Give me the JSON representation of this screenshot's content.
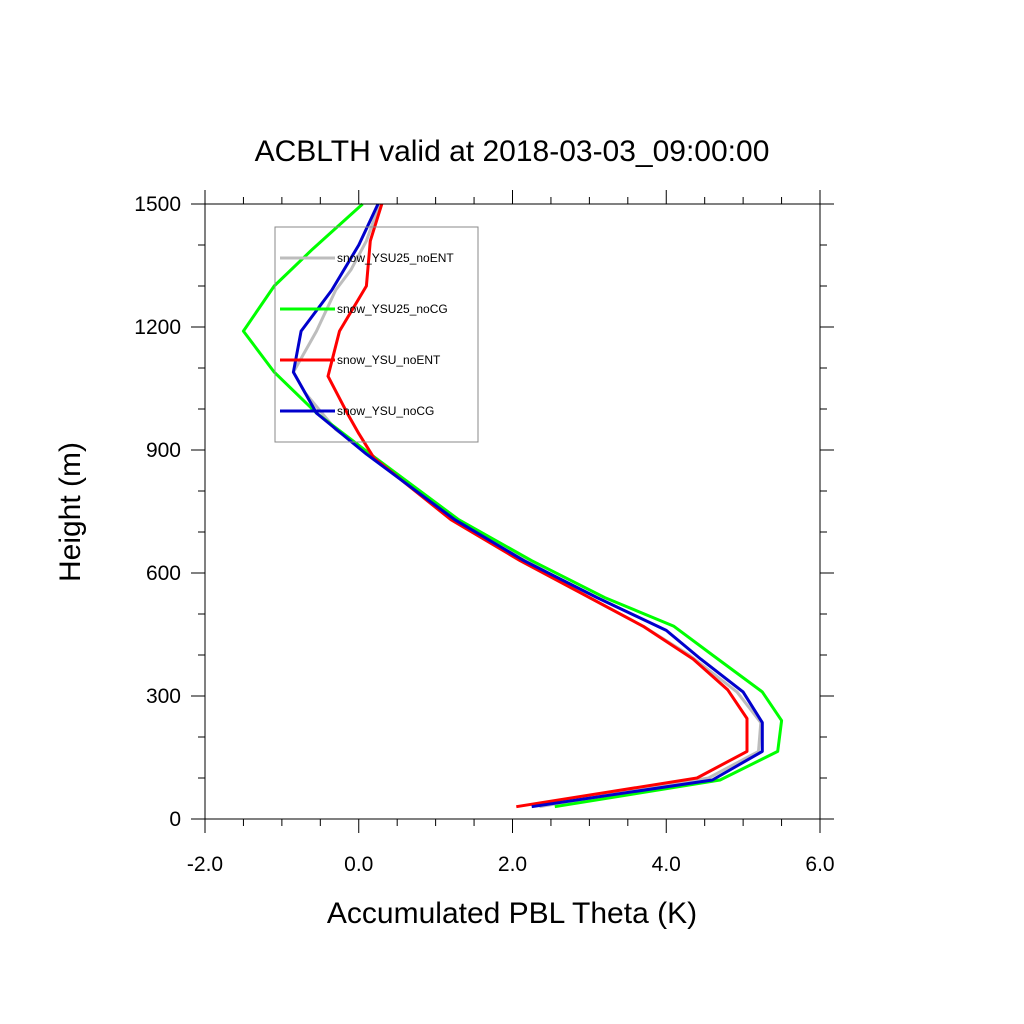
{
  "chart_data": {
    "type": "line",
    "title": "ACBLTH valid at 2018-03-03_09:00:00",
    "xlabel": "Accumulated PBL Theta (K)",
    "ylabel": "Height (m)",
    "xlim": [
      -2.0,
      6.0
    ],
    "ylim": [
      0,
      1500
    ],
    "xticks": [
      -2.0,
      0.0,
      2.0,
      4.0,
      6.0
    ],
    "xtick_labels": [
      "-2.0",
      "0.0",
      "2.0",
      "4.0",
      "6.0"
    ],
    "yticks": [
      0,
      300,
      600,
      900,
      1200,
      1500
    ],
    "ytick_labels": [
      "0",
      "300",
      "600",
      "900",
      "1200",
      "1500"
    ],
    "grid": false,
    "legend_position": "top-left",
    "series": [
      {
        "name": "snow_YSU25_noENT",
        "color": "#bdbdbd",
        "x": [
          2.35,
          4.55,
          5.2,
          5.23,
          4.92,
          4.3,
          3.7,
          3.0,
          2.1,
          1.2,
          0.15,
          -0.3,
          -0.7,
          -0.85,
          -0.55,
          -0.3,
          -0.1,
          0.1,
          0.27
        ],
        "y": [
          30,
          100,
          165,
          235,
          310,
          400,
          470,
          540,
          640,
          740,
          890,
          950,
          1040,
          1090,
          1190,
          1290,
          1340,
          1410,
          1500
        ]
      },
      {
        "name": "snow_YSU25_noCG",
        "color": "#00ff00",
        "x": [
          2.55,
          4.7,
          5.45,
          5.5,
          5.25,
          4.6,
          4.1,
          3.2,
          2.25,
          1.3,
          0.15,
          -0.55,
          -1.1,
          -1.5,
          -1.1,
          -0.6,
          0.05
        ],
        "y": [
          30,
          95,
          165,
          240,
          310,
          400,
          470,
          540,
          630,
          730,
          890,
          990,
          1090,
          1190,
          1300,
          1390,
          1500
        ]
      },
      {
        "name": "snow_YSU_noENT",
        "color": "#ff0000",
        "x": [
          2.05,
          4.4,
          5.05,
          5.05,
          4.8,
          4.35,
          3.7,
          3.0,
          2.1,
          1.2,
          0.2,
          0.0,
          -0.15,
          -0.4,
          -0.25,
          0.1,
          0.15,
          0.3
        ],
        "y": [
          30,
          100,
          165,
          245,
          315,
          390,
          470,
          540,
          630,
          730,
          880,
          940,
          990,
          1080,
          1190,
          1300,
          1410,
          1500
        ]
      },
      {
        "name": "snow_YSU_noCG",
        "color": "#0000cc",
        "x": [
          2.25,
          4.6,
          5.25,
          5.25,
          5.0,
          4.45,
          4.0,
          3.1,
          2.15,
          1.25,
          0.1,
          -0.55,
          -0.85,
          -0.75,
          -0.35,
          0.0,
          0.25
        ],
        "y": [
          30,
          95,
          165,
          235,
          310,
          390,
          460,
          540,
          630,
          730,
          890,
          990,
          1090,
          1190,
          1290,
          1400,
          1500
        ]
      }
    ]
  }
}
